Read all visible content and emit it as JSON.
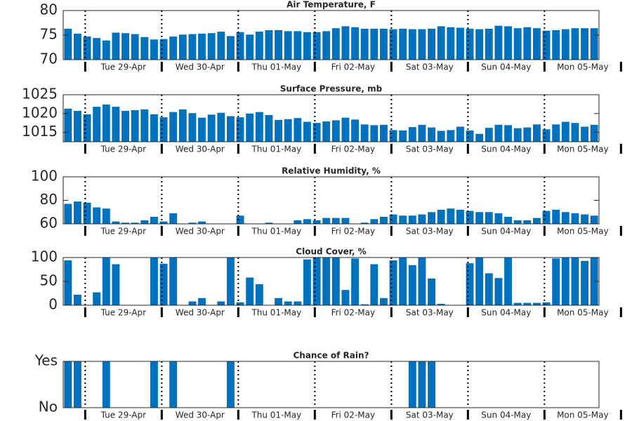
{
  "chart_data": [
    {
      "type": "bar",
      "title": "Air Temperature, F",
      "color": "#0072bd",
      "values": [
        76.3,
        75.3,
        74.7,
        74.4,
        73.9,
        75.5,
        75.4,
        75.2,
        74.6,
        74.1,
        74.2,
        74.7,
        75.1,
        75.2,
        75.3,
        75.4,
        75.7,
        74.8,
        75.6,
        75.1,
        75.7,
        76.0,
        76.0,
        75.8,
        75.8,
        75.6,
        75.6,
        75.8,
        76.4,
        76.8,
        76.6,
        76.3,
        76.3,
        76.3,
        76.2,
        76.3,
        76.2,
        76.2,
        76.3,
        76.8,
        76.6,
        76.5,
        76.3,
        76.2,
        76.3,
        76.9,
        76.8,
        76.4,
        76.6,
        76.4,
        75.9,
        76.0,
        76.2,
        76.4,
        76.4,
        76.4
      ],
      "ylim": [
        70,
        80
      ],
      "yticks": [
        70,
        75,
        80
      ],
      "xlim": [
        0,
        56
      ],
      "xticks": [
        {
          "value": 6.3,
          "label": "Tue 29-Apr"
        },
        {
          "value": 14.3,
          "label": "Wed 30-Apr"
        },
        {
          "value": 22.3,
          "label": "Thu 01-May"
        },
        {
          "value": 30.3,
          "label": "Fri 02-May"
        },
        {
          "value": 38.3,
          "label": "Sat 03-May"
        },
        {
          "value": 46.3,
          "label": "Sun 04-May"
        },
        {
          "value": 54.3,
          "label": "Mon 05-May"
        }
      ],
      "xgrid": [
        2.3,
        10.3,
        18.3,
        26.3,
        34.3,
        42.3,
        50.3,
        58.3
      ]
    },
    {
      "type": "bar",
      "title": "Surface Pressure, mb",
      "color": "#0072bd",
      "values": [
        1021.3,
        1020.7,
        1019.8,
        1021.8,
        1022.4,
        1021.8,
        1020.7,
        1020.9,
        1021.1,
        1019.8,
        1019.0,
        1020.4,
        1021.1,
        1020.1,
        1018.9,
        1019.7,
        1020.2,
        1019.3,
        1019.0,
        1020.0,
        1020.4,
        1019.6,
        1018.3,
        1018.5,
        1018.8,
        1017.8,
        1017.5,
        1017.9,
        1018.2,
        1018.9,
        1018.4,
        1017.1,
        1016.9,
        1017.0,
        1015.6,
        1015.5,
        1016.4,
        1017.0,
        1016.3,
        1015.4,
        1015.6,
        1016.5,
        1015.5,
        1014.6,
        1016.2,
        1017.0,
        1016.9,
        1016.1,
        1016.3,
        1017.1,
        1015.8,
        1017.1,
        1017.8,
        1017.5,
        1016.5,
        1017.0
      ],
      "ylim": [
        1012.5,
        1025
      ],
      "yticks": [
        1015,
        1020,
        1025
      ],
      "xlim": [
        0,
        56
      ],
      "xticks": [
        {
          "value": 6.3,
          "label": "Tue 29-Apr"
        },
        {
          "value": 14.3,
          "label": "Wed 30-Apr"
        },
        {
          "value": 22.3,
          "label": "Thu 01-May"
        },
        {
          "value": 30.3,
          "label": "Fri 02-May"
        },
        {
          "value": 38.3,
          "label": "Sat 03-May"
        },
        {
          "value": 46.3,
          "label": "Sun 04-May"
        },
        {
          "value": 54.3,
          "label": "Mon 05-May"
        }
      ],
      "xgrid": [
        2.3,
        10.3,
        18.3,
        26.3,
        34.3,
        42.3,
        50.3,
        58.3
      ]
    },
    {
      "type": "bar",
      "title": "Relative Humidity, %",
      "color": "#0072bd",
      "values": [
        77,
        79,
        78,
        74,
        73,
        62,
        61,
        61,
        63,
        66,
        62,
        69,
        60,
        61,
        62,
        60,
        60,
        60,
        67,
        60,
        60,
        61,
        60,
        60,
        63,
        64,
        63,
        65,
        65,
        65,
        60,
        61,
        64,
        66,
        68,
        67,
        67,
        68,
        70,
        72,
        73,
        72,
        71,
        70,
        70,
        69,
        66,
        63,
        63,
        65,
        71,
        72,
        70,
        69,
        68,
        67
      ],
      "ylim": [
        60,
        100
      ],
      "yticks": [
        60,
        80,
        100
      ],
      "xlim": [
        0,
        56
      ],
      "xticks": [
        {
          "value": 6.3,
          "label": "Tue 29-Apr"
        },
        {
          "value": 14.3,
          "label": "Wed 30-Apr"
        },
        {
          "value": 22.3,
          "label": "Thu 01-May"
        },
        {
          "value": 30.3,
          "label": "Fri 02-May"
        },
        {
          "value": 38.3,
          "label": "Sat 03-May"
        },
        {
          "value": 46.3,
          "label": "Sun 04-May"
        },
        {
          "value": 54.3,
          "label": "Mon 05-May"
        }
      ],
      "xgrid": [
        2.3,
        10.3,
        18.3,
        26.3,
        34.3,
        42.3,
        50.3,
        58.3
      ]
    },
    {
      "type": "bar",
      "title": "Cloud Cover, %",
      "color": "#0072bd",
      "values": [
        94,
        22,
        0,
        27,
        100,
        86,
        0,
        0,
        0,
        100,
        87,
        100,
        0,
        8,
        15,
        0,
        8,
        100,
        6,
        58,
        44,
        0,
        15,
        8,
        8,
        96,
        100,
        100,
        100,
        32,
        98,
        2,
        86,
        15,
        94,
        100,
        84,
        100,
        56,
        3,
        0,
        0,
        88,
        100,
        67,
        57,
        100,
        5,
        5,
        5,
        6,
        98,
        100,
        100,
        93,
        100
      ],
      "ylim": [
        0,
        100
      ],
      "yticks": [
        0,
        50,
        100
      ],
      "xlim": [
        0,
        56
      ],
      "xticks": [
        {
          "value": 6.3,
          "label": "Tue 29-Apr"
        },
        {
          "value": 14.3,
          "label": "Wed 30-Apr"
        },
        {
          "value": 22.3,
          "label": "Thu 01-May"
        },
        {
          "value": 30.3,
          "label": "Fri 02-May"
        },
        {
          "value": 38.3,
          "label": "Sat 03-May"
        },
        {
          "value": 46.3,
          "label": "Sun 04-May"
        },
        {
          "value": 54.3,
          "label": "Mon 05-May"
        }
      ],
      "xgrid": [
        2.3,
        10.3,
        18.3,
        26.3,
        34.3,
        42.3,
        50.3,
        58.3
      ]
    },
    {
      "type": "bar",
      "title": "Chance of Rain?",
      "color": "#0072bd",
      "values": [
        1,
        1,
        0,
        0,
        1,
        0,
        0,
        0,
        0,
        1,
        0,
        1,
        0,
        0,
        0,
        0,
        0,
        1,
        0,
        0,
        0,
        0,
        0,
        0,
        0,
        0,
        0,
        0,
        0,
        0,
        0,
        0,
        0,
        0,
        0,
        0,
        1,
        1,
        1,
        0,
        0,
        0,
        0,
        0,
        0,
        0,
        0,
        0,
        0,
        0,
        0,
        0,
        0,
        0,
        0,
        0
      ],
      "ylim": [
        0,
        1
      ],
      "yticks": [
        {
          "value": 0,
          "label": "No"
        },
        {
          "value": 1,
          "label": "Yes"
        }
      ],
      "xlim": [
        0,
        56
      ],
      "xticks": [
        {
          "value": 6.3,
          "label": "Tue 29-Apr"
        },
        {
          "value": 14.3,
          "label": "Wed 30-Apr"
        },
        {
          "value": 22.3,
          "label": "Thu 01-May"
        },
        {
          "value": 30.3,
          "label": "Fri 02-May"
        },
        {
          "value": 38.3,
          "label": "Sat 03-May"
        },
        {
          "value": 46.3,
          "label": "Sun 04-May"
        },
        {
          "value": 54.3,
          "label": "Mon 05-May"
        }
      ],
      "xgrid": [
        2.3,
        10.3,
        18.3,
        26.3,
        34.3,
        42.3,
        50.3,
        58.3
      ]
    }
  ]
}
